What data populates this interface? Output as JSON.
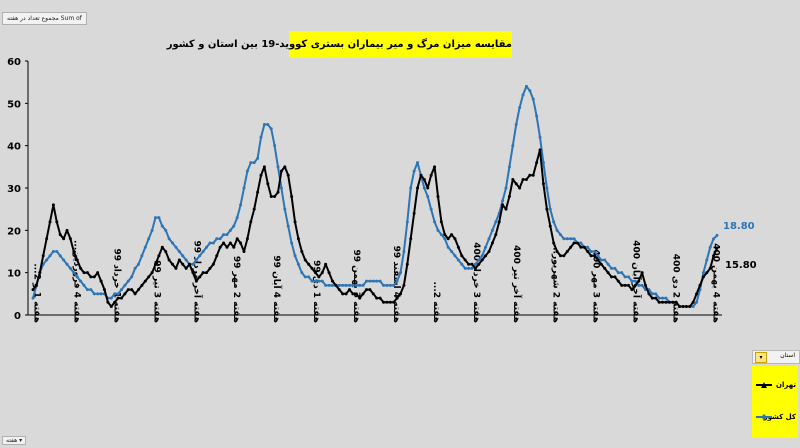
{
  "field_button": "مجموع تعداد در هفته Sum of",
  "corner_button": "هفته ▾",
  "legend_header": "استان",
  "legend_header_button": "▾",
  "chart_data": {
    "type": "line",
    "title": "مقایسه میزان مرگ و میر بیماران بستری کووید-19 بین استان و کشور",
    "ylim": [
      0,
      60
    ],
    "yticks": [
      0,
      10,
      20,
      30,
      40,
      50,
      60
    ],
    "grid": false,
    "legend_position": "bottom-right",
    "x_tick_labels": [
      "هفته 1 و 2...",
      "هفته 4 فروردین...",
      "هفته 1 خرداد 99",
      "هفته 3 تیر 99",
      "هفته آخر مرداد 99",
      "هفته 2 مهر 99",
      "هفته 4 آبان 99",
      "هفته 1 دی 99",
      "هفته 3 بهمن 99",
      "هفته 4 اسفند 99",
      "هفته 2...",
      "هفته 3 خرداد 400",
      "هفته آخر تیر 400",
      "هفته 2 شهریور...",
      "هفته 3 مهر 400",
      "هفته آخر آبان 400",
      "هفته 2 دی 400",
      "هفته 4 بهمن 400"
    ],
    "end_labels": {
      "country": "18.80",
      "tehran": "15.80"
    },
    "series": [
      {
        "name": "تهران",
        "color": "#000000",
        "marker": "triangle",
        "values": [
          6,
          7,
          10,
          14,
          18,
          22,
          26,
          22,
          19,
          18,
          20,
          18,
          15,
          13,
          11,
          10,
          10,
          9,
          9,
          10,
          8,
          6,
          3,
          2,
          3,
          4,
          4,
          5,
          6,
          6,
          5,
          6,
          7,
          8,
          9,
          10,
          12,
          14,
          16,
          15,
          13,
          12,
          11,
          13,
          12,
          11,
          12,
          10,
          8,
          9,
          10,
          10,
          11,
          12,
          14,
          16,
          17,
          16,
          17,
          16,
          18,
          17,
          15,
          18,
          22,
          25,
          29,
          33,
          35,
          31,
          28,
          28,
          29,
          34,
          35,
          33,
          28,
          22,
          18,
          15,
          13,
          12,
          11,
          10,
          9,
          10,
          12,
          10,
          8,
          7,
          6,
          5,
          5,
          6,
          5,
          5,
          4,
          5,
          6,
          6,
          5,
          4,
          4,
          3,
          3,
          3,
          3,
          4,
          5,
          7,
          12,
          18,
          24,
          30,
          33,
          32,
          30,
          33,
          35,
          28,
          22,
          19,
          18,
          19,
          18,
          16,
          14,
          13,
          12,
          12,
          11,
          12,
          13,
          14,
          15,
          17,
          19,
          22,
          26,
          25,
          28,
          32,
          31,
          30,
          32,
          32,
          33,
          33,
          36,
          39,
          31,
          25,
          21,
          17,
          15,
          14,
          14,
          15,
          16,
          17,
          17,
          16,
          16,
          15,
          14,
          14,
          13,
          12,
          11,
          10,
          9,
          9,
          8,
          7,
          7,
          7,
          6,
          7,
          8,
          10,
          7,
          5,
          4,
          4,
          3,
          3,
          3,
          3,
          3,
          3,
          2,
          2,
          2,
          2,
          3,
          5,
          7,
          9,
          10,
          11,
          14,
          15.8
        ]
      },
      {
        "name": "کل کشور",
        "color": "#2e75b6",
        "marker": "diamond",
        "values": [
          4,
          7,
          10,
          12,
          13,
          14,
          15,
          15,
          14,
          13,
          12,
          11,
          10,
          9,
          8,
          7,
          6,
          6,
          5,
          5,
          5,
          5,
          4,
          4,
          5,
          5,
          6,
          7,
          8,
          9,
          11,
          12,
          14,
          16,
          18,
          20,
          23,
          23,
          21,
          20,
          18,
          17,
          16,
          15,
          14,
          13,
          12,
          12,
          13,
          14,
          15,
          16,
          17,
          17,
          18,
          18,
          19,
          19,
          20,
          21,
          23,
          26,
          30,
          34,
          36,
          36,
          37,
          42,
          45,
          45,
          44,
          40,
          35,
          30,
          25,
          21,
          17,
          14,
          12,
          10,
          9,
          9,
          8,
          8,
          8,
          8,
          7,
          7,
          7,
          7,
          7,
          7,
          7,
          7,
          7,
          7,
          7,
          7,
          8,
          8,
          8,
          8,
          8,
          7,
          7,
          7,
          7,
          8,
          10,
          15,
          22,
          30,
          34,
          36,
          33,
          30,
          28,
          25,
          22,
          20,
          19,
          18,
          16,
          15,
          14,
          13,
          12,
          11,
          11,
          11,
          12,
          13,
          14,
          16,
          18,
          20,
          22,
          24,
          27,
          30,
          35,
          40,
          45,
          49,
          52,
          54,
          53,
          51,
          47,
          42,
          36,
          30,
          25,
          22,
          20,
          19,
          18,
          18,
          18,
          18,
          17,
          17,
          16,
          16,
          15,
          15,
          14,
          13,
          13,
          12,
          11,
          11,
          10,
          10,
          9,
          9,
          8,
          8,
          7,
          7,
          6,
          6,
          5,
          5,
          4,
          4,
          4,
          3,
          3,
          3,
          2,
          2,
          2,
          2,
          2,
          3,
          6,
          10,
          13,
          16,
          18,
          18.8
        ]
      }
    ]
  }
}
